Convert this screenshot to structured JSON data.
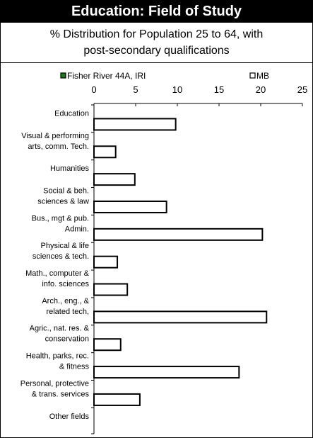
{
  "chart_data": {
    "type": "bar",
    "orientation": "horizontal",
    "title": "Education: Field of Study",
    "subtitle_lines": [
      "% Distribution for Population 25 to 64, with",
      "post-secondary qualifications"
    ],
    "categories": [
      [
        "Education"
      ],
      [
        "Visual & performing",
        "arts, comm. Tech."
      ],
      [
        "Humanities"
      ],
      [
        "Social & beh.",
        "sciences & law"
      ],
      [
        "Bus., mgt & pub.",
        "Admin."
      ],
      [
        "Physical & life",
        "sciences & tech."
      ],
      [
        "Math., computer &",
        "info. sciences"
      ],
      [
        "Arch., eng., &",
        "related tech,"
      ],
      [
        "Agric., nat. res. &",
        "conservation"
      ],
      [
        "Health, parks, rec.",
        "& fitness"
      ],
      [
        "Personal, protective",
        "& trans. services"
      ],
      [
        "Other fields"
      ]
    ],
    "series": [
      {
        "name": "Fisher River 44A, IRI",
        "color": "#1a7a1a",
        "values": [
          null,
          null,
          null,
          null,
          null,
          null,
          null,
          null,
          null,
          null,
          null,
          null
        ]
      },
      {
        "name": "MB",
        "color": "#ffffff",
        "values": [
          9.8,
          2.6,
          4.9,
          8.7,
          20.2,
          2.8,
          4.0,
          20.7,
          3.2,
          17.4,
          5.5,
          0
        ]
      }
    ],
    "xticks": [
      0,
      5,
      10,
      15,
      20,
      25
    ],
    "xlim": [
      0,
      25
    ],
    "legend_position": "top",
    "grid": false
  }
}
